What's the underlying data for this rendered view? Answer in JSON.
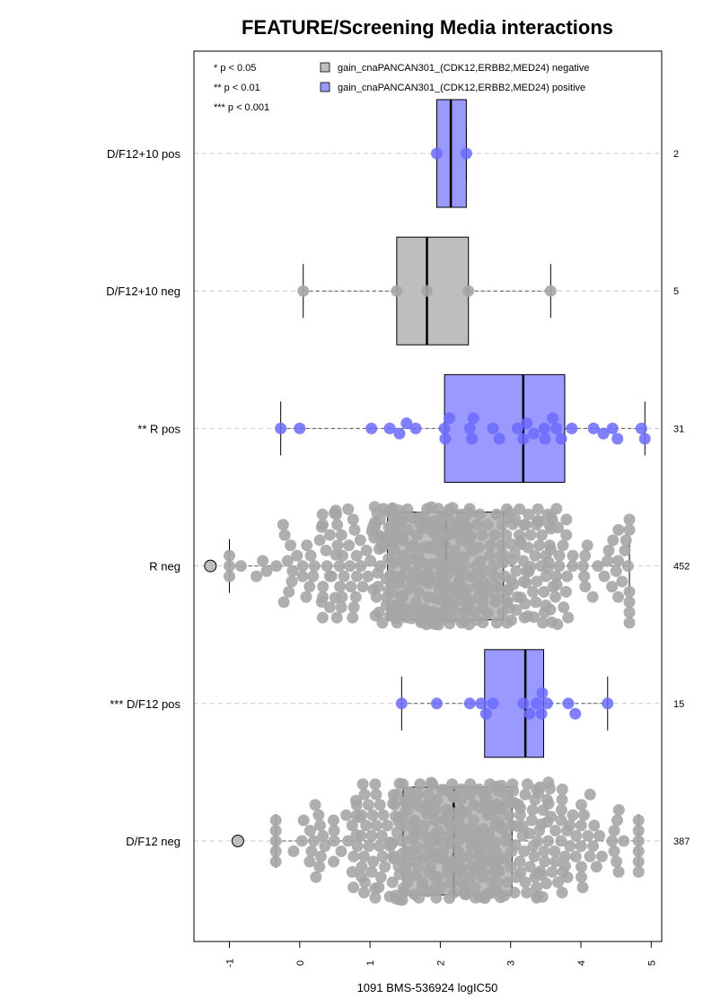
{
  "chart_data": {
    "type": "boxplot",
    "orientation": "horizontal",
    "title": "FEATURE/Screening Media interactions",
    "xlabel": "1091 BMS-536924 logIC50",
    "xlim": [
      -1.5,
      5.15
    ],
    "xticks": [
      "-1",
      "0",
      "1",
      "2",
      "3",
      "4",
      "5"
    ],
    "grid": "horizontal dashed at each group",
    "significance_legend": [
      "* p < 0.05",
      "** p < 0.01",
      "*** p < 0.001"
    ],
    "legend": [
      {
        "label": "gain_cnaPANCAN301_(CDK12,ERBB2,MED24) negative",
        "color": "#bebebe"
      },
      {
        "label": "gain_cnaPANCAN301_(CDK12,ERBB2,MED24) positive",
        "color": "#9999ff"
      }
    ],
    "point_colors": {
      "negative": "#a6a6a6",
      "positive": "#6b6bff"
    },
    "groups": [
      {
        "label": "D/F12+10 pos",
        "n": "2",
        "class": "positive",
        "whisker_low": 1.95,
        "q1": 1.95,
        "median": 2.15,
        "q3": 2.37,
        "whisker_high": 2.37,
        "points": [
          1.95,
          2.37
        ],
        "outliers": []
      },
      {
        "label": "D/F12+10 neg",
        "n": "5",
        "class": "negative",
        "whisker_low": 0.05,
        "q1": 1.38,
        "median": 1.81,
        "q3": 2.4,
        "whisker_high": 3.57,
        "points": [
          0.05,
          1.38,
          1.81,
          2.4,
          3.57
        ],
        "outliers": []
      },
      {
        "label": "** R pos",
        "n": "31",
        "class": "positive",
        "whisker_low": -0.27,
        "q1": 2.06,
        "median": 3.18,
        "q3": 3.77,
        "whisker_high": 4.91,
        "points": [
          -0.27,
          0.0,
          1.02,
          1.28,
          1.42,
          1.52,
          1.65,
          2.06,
          2.07,
          2.13,
          2.42,
          2.45,
          2.47,
          2.75,
          2.84,
          3.1,
          3.18,
          3.23,
          3.33,
          3.48,
          3.49,
          3.6,
          3.65,
          3.72,
          3.87,
          4.18,
          4.32,
          4.45,
          4.52,
          4.86,
          4.91
        ],
        "outliers": []
      },
      {
        "label": "R neg",
        "n": "452",
        "class": "negative",
        "whisker_low": -1.0,
        "q1": 1.25,
        "median": 2.08,
        "q3": 2.9,
        "whisker_high": 4.69,
        "outliers": [
          -1.27
        ],
        "beeswarm": true
      },
      {
        "label": "*** D/F12 pos",
        "n": "15",
        "class": "positive",
        "whisker_low": 1.45,
        "q1": 2.63,
        "median": 3.21,
        "q3": 3.47,
        "whisker_high": 4.38,
        "points": [
          1.45,
          1.95,
          2.42,
          2.58,
          2.65,
          2.75,
          3.18,
          3.27,
          3.37,
          3.44,
          3.45,
          3.52,
          3.82,
          3.92,
          4.38
        ],
        "outliers": []
      },
      {
        "label": "D/F12 neg",
        "n": "387",
        "class": "negative",
        "whisker_low": -0.34,
        "q1": 1.47,
        "median": 2.19,
        "q3": 3.02,
        "whisker_high": 4.82,
        "outliers": [
          -0.88
        ],
        "beeswarm": true
      }
    ]
  }
}
